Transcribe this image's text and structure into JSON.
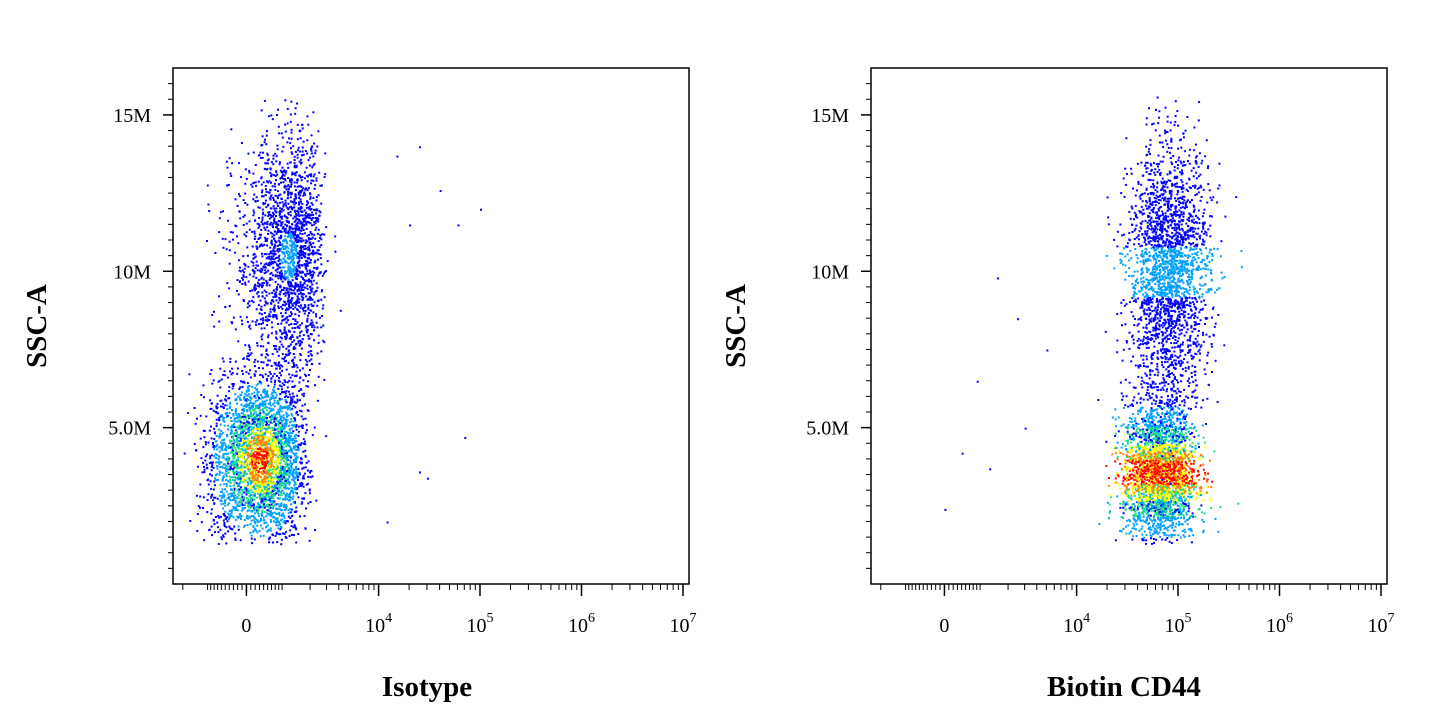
{
  "chart_data": [
    {
      "type": "scatter",
      "subtype": "flow-cytometry-density-dot-plot",
      "xlabel": "Isotype",
      "ylabel": "SSC-A",
      "xscale": "biexponential",
      "x_tick_labels": [
        "0",
        "10^4",
        "10^5",
        "10^6",
        "10^7"
      ],
      "y_ticks": [
        {
          "value": 5000000,
          "label": "5.0M"
        },
        {
          "value": 10000000,
          "label": "10M"
        },
        {
          "value": 15000000,
          "label": "15M"
        }
      ],
      "ylim": [
        0,
        16500000
      ],
      "populations": [
        {
          "name": "",
          "x_center": 300,
          "y_center": 4000000,
          "x_spread": 600,
          "y_spread": 1300000,
          "weight": 0.62
        },
        {
          "name": "",
          "x_center": 1100,
          "y_center": 10500000,
          "x_spread": 700,
          "y_spread": 1900000,
          "weight": 0.38
        }
      ],
      "outliers": [
        {
          "x": 20000,
          "y": 11500000
        },
        {
          "x": 40000,
          "y": 12600000
        },
        {
          "x": 60000,
          "y": 11500000
        },
        {
          "x": 100000,
          "y": 12000000
        },
        {
          "x": 70000,
          "y": 4700000
        },
        {
          "x": 25000,
          "y": 3600000
        },
        {
          "x": 30000,
          "y": 3400000
        },
        {
          "x": 12000,
          "y": 2000000
        },
        {
          "x": 15000,
          "y": 13700000
        },
        {
          "x": 25000,
          "y": 14000000
        }
      ],
      "density_colors": [
        "#0000ff",
        "#00a0ff",
        "#20e080",
        "#ffff00",
        "#ff8000",
        "#ff0000"
      ]
    },
    {
      "type": "scatter",
      "subtype": "flow-cytometry-density-dot-plot",
      "xlabel": "Biotin CD44",
      "ylabel": "SSC-A",
      "xscale": "biexponential",
      "x_tick_labels": [
        "0",
        "10^4",
        "10^5",
        "10^6",
        "10^7"
      ],
      "y_ticks": [
        {
          "value": 5000000,
          "label": "5.0M"
        },
        {
          "value": 10000000,
          "label": "10M"
        },
        {
          "value": 15000000,
          "label": "15M"
        }
      ],
      "ylim": [
        0,
        16500000
      ],
      "populations": [
        {
          "name": "",
          "x_center": 65000,
          "y_center": 3600000,
          "x_spread": 0.18,
          "y_spread": 1100000,
          "weight": 0.55
        },
        {
          "name": "",
          "x_center": 80000,
          "y_center": 10000000,
          "x_spread": 0.2,
          "y_spread": 2000000,
          "weight": 0.45
        }
      ],
      "outliers": [
        {
          "x": 0,
          "y": 2400000
        },
        {
          "x": 400,
          "y": 4200000
        },
        {
          "x": 800,
          "y": 6500000
        },
        {
          "x": 1500,
          "y": 9800000
        },
        {
          "x": 2500,
          "y": 8500000
        },
        {
          "x": 3000,
          "y": 5000000
        },
        {
          "x": 5000,
          "y": 7500000
        },
        {
          "x": 1200,
          "y": 3700000
        }
      ],
      "density_colors": [
        "#0000ff",
        "#00a0ff",
        "#20e080",
        "#ffff00",
        "#ff8000",
        "#ff0000"
      ]
    }
  ]
}
